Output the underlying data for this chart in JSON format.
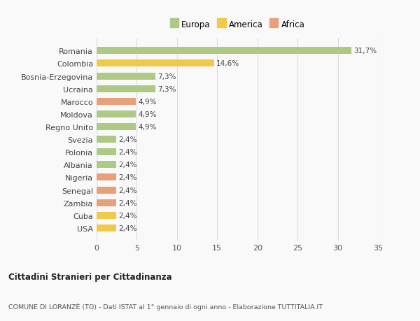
{
  "countries": [
    "Romania",
    "Colombia",
    "Bosnia-Erzegovina",
    "Ucraina",
    "Marocco",
    "Moldova",
    "Regno Unito",
    "Svezia",
    "Polonia",
    "Albania",
    "Nigeria",
    "Senegal",
    "Zambia",
    "Cuba",
    "USA"
  ],
  "values": [
    31.7,
    14.6,
    7.3,
    7.3,
    4.9,
    4.9,
    4.9,
    2.4,
    2.4,
    2.4,
    2.4,
    2.4,
    2.4,
    2.4,
    2.4
  ],
  "continents": [
    "Europa",
    "America",
    "Europa",
    "Europa",
    "Africa",
    "Europa",
    "Europa",
    "Europa",
    "Europa",
    "Europa",
    "Africa",
    "Africa",
    "Africa",
    "America",
    "America"
  ],
  "colors": {
    "Europa": "#adc985",
    "America": "#f0c84a",
    "Africa": "#e8a07a"
  },
  "labels": [
    "31,7%",
    "14,6%",
    "7,3%",
    "7,3%",
    "4,9%",
    "4,9%",
    "4,9%",
    "2,4%",
    "2,4%",
    "2,4%",
    "2,4%",
    "2,4%",
    "2,4%",
    "2,4%",
    "2,4%"
  ],
  "xlim": [
    0,
    35
  ],
  "xticks": [
    0,
    5,
    10,
    15,
    20,
    25,
    30,
    35
  ],
  "title": "Cittadini Stranieri per Cittadinanza",
  "subtitle": "COMUNE DI LORANZÈ (TO) - Dati ISTAT al 1° gennaio di ogni anno - Elaborazione TUTTITALIA.IT",
  "background_color": "#f9f9f9",
  "grid_color": "#dddddd",
  "bar_height": 0.55,
  "legend_order": [
    "Europa",
    "America",
    "Africa"
  ]
}
